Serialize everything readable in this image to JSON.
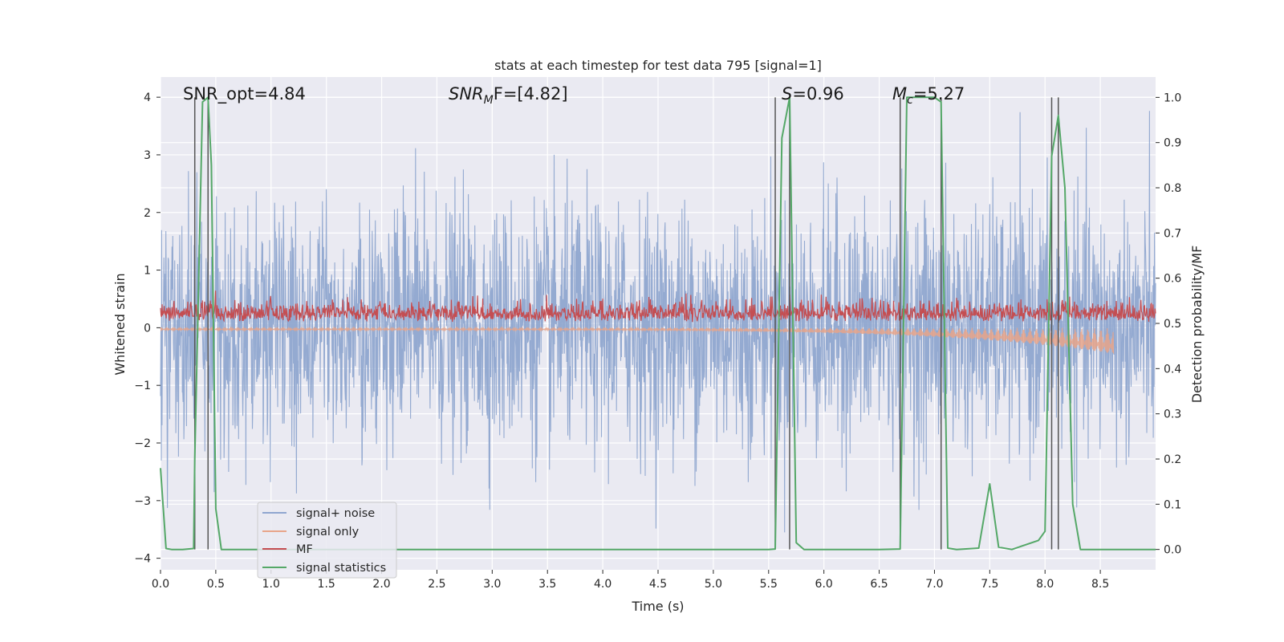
{
  "chart_data": {
    "type": "line",
    "title": "stats at each timestep for test data 795 [signal=1]",
    "xlabel": "Time (s)",
    "ylabel": "Whitened strain",
    "ylabel_right": "Detection probability/MF",
    "xlim": [
      0,
      9
    ],
    "ylim": [
      -4.2,
      4.35
    ],
    "ylim_right": [
      -0.045,
      1.045
    ],
    "x_ticks": [
      "0.0",
      "0.5",
      "1.0",
      "1.5",
      "2.0",
      "2.5",
      "3.0",
      "3.5",
      "4.0",
      "4.5",
      "5.0",
      "5.5",
      "6.0",
      "6.5",
      "7.0",
      "7.5",
      "8.0",
      "8.5"
    ],
    "x_tick_values": [
      0,
      0.5,
      1,
      1.5,
      2,
      2.5,
      3,
      3.5,
      4,
      4.5,
      5,
      5.5,
      6,
      6.5,
      7,
      7.5,
      8,
      8.5
    ],
    "y_ticks": [
      "−4",
      "−3",
      "−2",
      "−1",
      "0",
      "1",
      "2",
      "3",
      "4"
    ],
    "y_tick_values": [
      -4,
      -3,
      -2,
      -1,
      0,
      1,
      2,
      3,
      4
    ],
    "y_ticks_right": [
      "0.0",
      "0.1",
      "0.2",
      "0.3",
      "0.4",
      "0.5",
      "0.6",
      "0.7",
      "0.8",
      "0.9",
      "1.0"
    ],
    "y_tick_values_right": [
      0,
      0.1,
      0.2,
      0.3,
      0.4,
      0.5,
      0.6,
      0.7,
      0.8,
      0.9,
      1.0
    ],
    "grid": true,
    "legend_position": "lower-left",
    "annotations": {
      "snr_opt": "SNR_opt=4.84",
      "snr_mf_main": "SNR",
      "snr_mf_sub": "M",
      "snr_mf_rest": "F=[4.82]",
      "s_main": "S",
      "s_rest": "=0.96",
      "mc_main": "M",
      "mc_sub": "c",
      "mc_rest": "=5.27"
    },
    "vertical_lines_s": [
      0.31,
      0.43,
      5.56,
      5.69,
      6.69,
      7.06,
      8.06,
      8.12
    ],
    "series": [
      {
        "name": "signal+ noise",
        "color": "#8fa6cf",
        "axis": "left",
        "description_values": {
          "noise_sigma": 1.0,
          "peak_max": 4.0,
          "peak_min": -3.6
        }
      },
      {
        "name": "signal only",
        "color": "#e8a58a",
        "axis": "left",
        "chirp_start_s": 0.0,
        "chirp_end_s": 8.62,
        "chirp_end_amplitude": 0.45
      },
      {
        "name": "MF",
        "color": "#c44e52",
        "axis": "right",
        "baseline": 0.5,
        "range": [
          0.5,
          0.6
        ],
        "peak": 0.6
      },
      {
        "name": "signal statistics",
        "color": "#55a868",
        "axis": "right",
        "x": [
          0.0,
          0.05,
          0.1,
          0.2,
          0.3,
          0.31,
          0.38,
          0.43,
          0.46,
          0.5,
          0.55,
          1.0,
          2.0,
          3.0,
          4.0,
          5.0,
          5.5,
          5.56,
          5.62,
          5.69,
          5.75,
          5.82,
          6.0,
          6.5,
          6.69,
          6.75,
          6.8,
          7.0,
          7.06,
          7.12,
          7.2,
          7.4,
          7.5,
          7.58,
          7.7,
          7.94,
          8.0,
          8.06,
          8.12,
          8.18,
          8.25,
          8.32,
          8.5,
          9.0
        ],
        "y": [
          0.18,
          0.002,
          0.0,
          0.0,
          0.002,
          0.2,
          0.99,
          1.0,
          0.85,
          0.09,
          0.0,
          0.0,
          0.0,
          0.0,
          0.0,
          0.0,
          0.0,
          0.001,
          0.91,
          1.0,
          0.015,
          0.0,
          0.0,
          0.0,
          0.001,
          1.0,
          1.0,
          1.0,
          0.99,
          0.003,
          0.0,
          0.003,
          0.145,
          0.005,
          0.0,
          0.02,
          0.04,
          0.87,
          0.96,
          0.8,
          0.1,
          0.0,
          0.0,
          0.0
        ]
      }
    ]
  }
}
